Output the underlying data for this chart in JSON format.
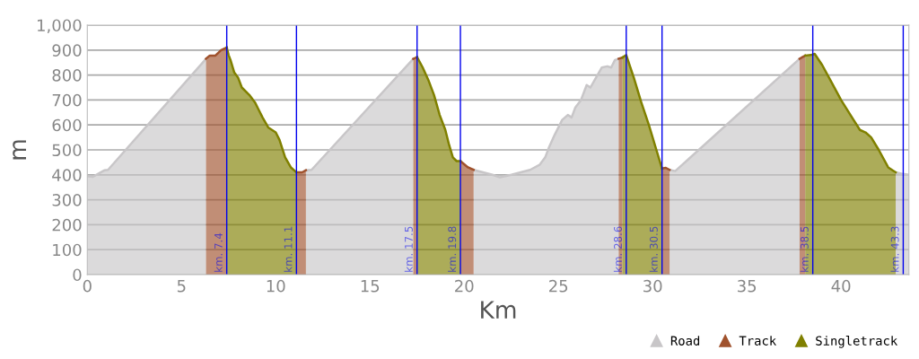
{
  "chart_data": {
    "type": "area",
    "xlabel": "Km",
    "ylabel": "m",
    "xlim": [
      0,
      43.6
    ],
    "ylim": [
      0,
      1000
    ],
    "xticks": [
      0,
      5,
      10,
      15,
      20,
      25,
      30,
      35,
      40
    ],
    "yticks": [
      0,
      100,
      200,
      300,
      400,
      500,
      600,
      700,
      800,
      900,
      {
        "value": 1000,
        "label": "1,000"
      }
    ],
    "grid": "y",
    "legend": "bottom right",
    "series": [
      {
        "name": "Road",
        "color": "#c8c6c8",
        "x": [
          0,
          0.3,
          0.6,
          0.9,
          1.1,
          6.3
        ],
        "values": [
          395,
          392,
          405,
          418,
          420,
          865
        ]
      },
      {
        "color": "#c8c6c8",
        "x": [
          11.6,
          11.9,
          17.3
        ],
        "values": [
          418,
          420,
          865
        ]
      },
      {
        "color": "#c8c6c8",
        "x": [
          20.5,
          21.5,
          21.9,
          22.5,
          23.5,
          24,
          24.3,
          24.5,
          24.8,
          25.2,
          25.5,
          25.7,
          25.9,
          26.2,
          26.5,
          26.7,
          27,
          27.3,
          27.6,
          27.8,
          28,
          28.2
        ],
        "values": [
          420,
          400,
          390,
          400,
          420,
          440,
          470,
          510,
          560,
          620,
          640,
          630,
          670,
          700,
          760,
          750,
          790,
          830,
          835,
          830,
          860,
          865
        ]
      },
      {
        "color": "#c8c6c8",
        "x": [
          30.9,
          31.2,
          37.8
        ],
        "values": [
          420,
          415,
          865
        ]
      },
      {
        "color": "#c8c6c8",
        "x": [
          42.9,
          43.2,
          43.6
        ],
        "values": [
          410,
          405,
          400
        ]
      },
      {
        "name": "Track",
        "color": "#a0522d",
        "x": [
          6.3,
          6.5,
          6.8,
          7.1,
          7.4
        ],
        "values": [
          865,
          878,
          878,
          900,
          910
        ]
      },
      {
        "color": "#a0522d",
        "x": [
          11.1,
          11.4,
          11.6
        ],
        "values": [
          410,
          410,
          418
        ]
      },
      {
        "color": "#a0522d",
        "x": [
          17.3,
          17.5
        ],
        "values": [
          865,
          872
        ]
      },
      {
        "color": "#a0522d",
        "x": [
          19.8,
          20.2,
          20.5
        ],
        "values": [
          455,
          430,
          420
        ]
      },
      {
        "color": "#a0522d",
        "x": [
          28.2,
          28.4
        ],
        "values": [
          865,
          870
        ]
      },
      {
        "color": "#a0522d",
        "x": [
          30.5,
          30.7,
          30.9
        ],
        "values": [
          425,
          428,
          420
        ]
      },
      {
        "color": "#a0522d",
        "x": [
          37.8,
          37.95,
          38.1
        ],
        "values": [
          865,
          872,
          878
        ]
      },
      {
        "name": "Singletrack",
        "color": "#808000",
        "x": [
          7.4,
          7.5,
          7.6,
          7.8,
          8.0,
          8.2,
          8.6,
          8.9,
          9.1,
          9.3,
          9.6,
          10.0,
          10.2,
          10.5,
          10.8,
          11.1
        ],
        "values": [
          910,
          880,
          860,
          810,
          790,
          750,
          720,
          690,
          660,
          630,
          590,
          570,
          540,
          470,
          430,
          410
        ]
      },
      {
        "color": "#808000",
        "x": [
          17.5,
          17.8,
          18.1,
          18.4,
          18.7,
          19.0,
          19.2,
          19.4,
          19.6,
          19.8
        ],
        "values": [
          872,
          830,
          780,
          720,
          640,
          580,
          520,
          470,
          455,
          455
        ]
      },
      {
        "color": "#808000",
        "x": [
          28.4,
          28.6,
          29.0,
          29.4,
          29.8,
          30.2,
          30.5
        ],
        "values": [
          870,
          880,
          790,
          690,
          600,
          500,
          425
        ]
      },
      {
        "color": "#808000",
        "x": [
          38.1,
          38.4,
          38.6,
          39.0,
          39.5,
          40.0,
          40.5,
          41.0,
          41.3,
          41.6,
          42.0,
          42.5,
          42.9
        ],
        "values": [
          878,
          880,
          885,
          840,
          770,
          700,
          640,
          580,
          570,
          550,
          500,
          430,
          410
        ]
      }
    ],
    "ref_lines": [
      {
        "axis": "x",
        "value": 7.4,
        "label": "km. 7.4",
        "color": "#0000ee"
      },
      {
        "axis": "x",
        "value": 11.1,
        "label": "km. 11.1",
        "color": "#0000ee"
      },
      {
        "axis": "x",
        "value": 17.5,
        "label": "km. 17.5",
        "color": "#0000ee"
      },
      {
        "axis": "x",
        "value": 19.8,
        "label": "km. 19.8",
        "color": "#0000ee"
      },
      {
        "axis": "x",
        "value": 28.6,
        "label": "km. 28.6",
        "color": "#0000ee"
      },
      {
        "axis": "x",
        "value": 30.5,
        "label": "km. 30.5",
        "color": "#0000ee"
      },
      {
        "axis": "x",
        "value": 38.5,
        "label": "km. 38.5",
        "color": "#0000ee"
      },
      {
        "axis": "x",
        "value": 43.3,
        "label": "km. 43.3",
        "color": "#0000ee"
      }
    ]
  }
}
